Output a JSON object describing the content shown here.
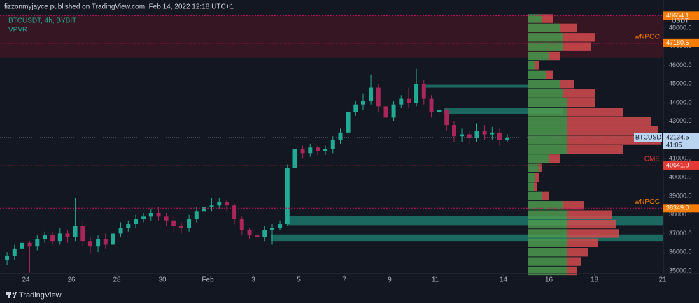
{
  "header": "fizzonmyjayce published on TradingView.com, Feb 14, 2022 12:18 UTC+1",
  "footer": "TradingView",
  "chart_data": {
    "type": "candlestick",
    "title": "BTCUSDT, 4h, BYBIT",
    "indicator": "VPVR",
    "currency": "USDT",
    "up_color": "#22ab94",
    "down_color": "#a8265a",
    "x": [
      0.17,
      0.5,
      0.83,
      1.17,
      1.5,
      1.83,
      2.17,
      2.5,
      2.83,
      3.17,
      3.5,
      3.83,
      4.17,
      4.5,
      4.83,
      5.17,
      5.5,
      5.83,
      6.17,
      6.5,
      6.83,
      7.17,
      7.5,
      7.83,
      8.17,
      8.5,
      8.83,
      9.17,
      9.5,
      9.83,
      10.17,
      10.5,
      10.83,
      11.17,
      11.5,
      11.83,
      12.17,
      12.5,
      12.83,
      13.17,
      13.5,
      13.83,
      14.17,
      14.5,
      14.83,
      15.17,
      15.5,
      15.83,
      16.17,
      16.5,
      16.83,
      17.17,
      17.5,
      17.83,
      18.17,
      18.5,
      18.83,
      19.17,
      19.5,
      19.83,
      20.17,
      20.5,
      20.83,
      21.17,
      21.5,
      21.83,
      22.17
    ],
    "open": [
      35600,
      35800,
      36200,
      36500,
      36300,
      36700,
      36900,
      36600,
      37000,
      36800,
      37400,
      36600,
      36300,
      36700,
      36400,
      37000,
      37300,
      37500,
      37800,
      37900,
      38100,
      37900,
      37700,
      37400,
      37300,
      37800,
      38200,
      38400,
      38500,
      38700,
      38500,
      37800,
      37200,
      36900,
      36800,
      37200,
      37300,
      37500,
      40500,
      41500,
      41300,
      41600,
      41400,
      41500,
      42000,
      42400,
      43500,
      43900,
      44100,
      44800,
      43800,
      43200,
      43900,
      44200,
      44000,
      45000,
      44200,
      43500,
      43600,
      42800,
      42200,
      42300,
      42100,
      42500,
      42300,
      42400,
      42000
    ],
    "high": [
      36000,
      36400,
      36700,
      36600,
      36900,
      37100,
      37100,
      37300,
      37200,
      38900,
      37700,
      36800,
      36900,
      37000,
      37200,
      37600,
      37700,
      38000,
      38100,
      38300,
      38400,
      38100,
      37900,
      37600,
      38000,
      38400,
      38600,
      38900,
      38900,
      38800,
      38600,
      37900,
      37300,
      37100,
      37400,
      37500,
      37700,
      40700,
      41800,
      41700,
      41800,
      41700,
      41700,
      42200,
      42600,
      43800,
      44100,
      44500,
      45500,
      45000,
      44000,
      44100,
      44400,
      44800,
      45800,
      45200,
      44400,
      43900,
      43700,
      43000,
      42600,
      42500,
      42900,
      42800,
      42700,
      42600,
      42300
    ],
    "low": [
      35300,
      35600,
      36000,
      34900,
      36100,
      36500,
      36400,
      36400,
      36500,
      36600,
      36300,
      35900,
      36000,
      36200,
      36200,
      36800,
      37100,
      37300,
      37600,
      37700,
      37700,
      37400,
      37100,
      37000,
      37100,
      37600,
      38000,
      38200,
      38300,
      38200,
      37500,
      36900,
      36700,
      36500,
      36600,
      36400,
      37200,
      37400,
      40300,
      41000,
      41100,
      41200,
      41200,
      41300,
      41800,
      42200,
      43300,
      43600,
      43900,
      43500,
      42900,
      43000,
      43700,
      43700,
      43800,
      43900,
      43200,
      43200,
      42500,
      41900,
      41900,
      41800,
      41900,
      42000,
      42000,
      41700,
      41900
    ],
    "close": [
      35800,
      36200,
      36500,
      36300,
      36700,
      36900,
      36600,
      37000,
      36800,
      37400,
      36600,
      36300,
      36700,
      36400,
      37000,
      37300,
      37500,
      37800,
      37900,
      38100,
      37900,
      37700,
      37400,
      37300,
      37800,
      38200,
      38400,
      38500,
      38700,
      38500,
      37800,
      37200,
      36900,
      36800,
      37200,
      37300,
      37500,
      40500,
      41500,
      41300,
      41600,
      41400,
      41500,
      42000,
      42400,
      43500,
      43900,
      44100,
      44800,
      43800,
      43200,
      43900,
      44200,
      44000,
      45000,
      44200,
      43500,
      43600,
      42800,
      42200,
      42300,
      42100,
      42500,
      42300,
      42400,
      42000,
      42134.5
    ],
    "xlim": [
      -0.14,
      29.03
    ],
    "xticks": [
      {
        "value": 1,
        "label": "24"
      },
      {
        "value": 3,
        "label": "26"
      },
      {
        "value": 5,
        "label": "28"
      },
      {
        "value": 7,
        "label": "30"
      },
      {
        "value": 9,
        "label": "Feb"
      },
      {
        "value": 11,
        "label": "3"
      },
      {
        "value": 13,
        "label": "5"
      },
      {
        "value": 15,
        "label": "7"
      },
      {
        "value": 17,
        "label": "9"
      },
      {
        "value": 19,
        "label": "11"
      },
      {
        "value": 22,
        "label": "14"
      },
      {
        "value": 24,
        "label": "16"
      },
      {
        "value": 26,
        "label": "18"
      },
      {
        "value": 29,
        "label": "21"
      }
    ],
    "ylim": [
      34850,
      49490
    ],
    "yticks": [
      {
        "value": 35000,
        "label": "35000.0"
      },
      {
        "value": 36000,
        "label": "36000.0"
      },
      {
        "value": 37000,
        "label": "37000.0"
      },
      {
        "value": 38000,
        "label": "38000.0"
      },
      {
        "value": 39000,
        "label": "39000.0"
      },
      {
        "value": 40000,
        "label": "40000.0"
      },
      {
        "value": 41000,
        "label": "41000.0"
      },
      {
        "value": 42000,
        "label": "42000.0"
      },
      {
        "value": 43000,
        "label": "43000.0"
      },
      {
        "value": 44000,
        "label": "44000.0"
      },
      {
        "value": 45000,
        "label": "45000.0"
      },
      {
        "value": 46000,
        "label": "46000.0"
      },
      {
        "value": 47000,
        "label": "47000.0"
      },
      {
        "value": 48000,
        "label": "48000.0"
      }
    ],
    "levels": [
      {
        "value": 48654.1,
        "color": "#f57c00",
        "line_color": "#c2185b"
      },
      {
        "name": "wNPOC",
        "value": 47180.5,
        "color": "#f57c00",
        "line_color": "#c2185b"
      },
      {
        "name": "CME",
        "value": 40641.0,
        "value_label": "40641.0",
        "color": "#e53935",
        "line_color": "#7f1d1d"
      },
      {
        "name": "wNPOC",
        "value": 38349.0,
        "value_label": "38349.0",
        "color": "#f57c00",
        "line_color": "#c2185b"
      }
    ],
    "last_price": {
      "symbol": "BTCUSDT",
      "value": 42134.5,
      "countdown": "41:05",
      "color": "#b8d4f0"
    },
    "zones": [
      {
        "x0": -0.14,
        "x1": 29.03,
        "low": 46400,
        "high": 48654.1,
        "color": "rgba(120,20,35,0.35)"
      },
      {
        "x0": 18.48,
        "x1": 23.09,
        "low": 44800,
        "high": 44950,
        "color": "rgba(34,171,148,0.55)"
      },
      {
        "x0": 19.4,
        "x1": 24.63,
        "low": 43400,
        "high": 43700,
        "color": "rgba(34,171,148,0.55)"
      },
      {
        "x0": 12.48,
        "x1": 29.03,
        "low": 37450,
        "high": 37950,
        "color": "rgba(34,171,148,0.55)"
      },
      {
        "x0": 11.8,
        "x1": 29.03,
        "low": 36600,
        "high": 36950,
        "color": "rgba(34,171,148,0.55)"
      }
    ],
    "volume_profile": {
      "up_color": "#4c9a4f",
      "down_color": "#d24b4f",
      "prices": [
        48500,
        48000,
        47500,
        47000,
        46500,
        46000,
        45500,
        45000,
        44500,
        44000,
        43500,
        43000,
        42500,
        42000,
        41500,
        41000,
        40500,
        40000,
        39500,
        39000,
        38500,
        38000,
        37500,
        37000,
        36500,
        36000,
        35500,
        35000
      ],
      "up": [
        20,
        45,
        50,
        50,
        30,
        10,
        25,
        45,
        50,
        55,
        55,
        55,
        55,
        55,
        55,
        30,
        15,
        10,
        8,
        20,
        50,
        55,
        55,
        55,
        55,
        55,
        55,
        55
      ],
      "down": [
        15,
        25,
        45,
        40,
        15,
        5,
        10,
        20,
        45,
        40,
        80,
        120,
        130,
        135,
        80,
        15,
        5,
        5,
        5,
        10,
        30,
        65,
        70,
        75,
        45,
        30,
        20,
        15
      ]
    }
  }
}
